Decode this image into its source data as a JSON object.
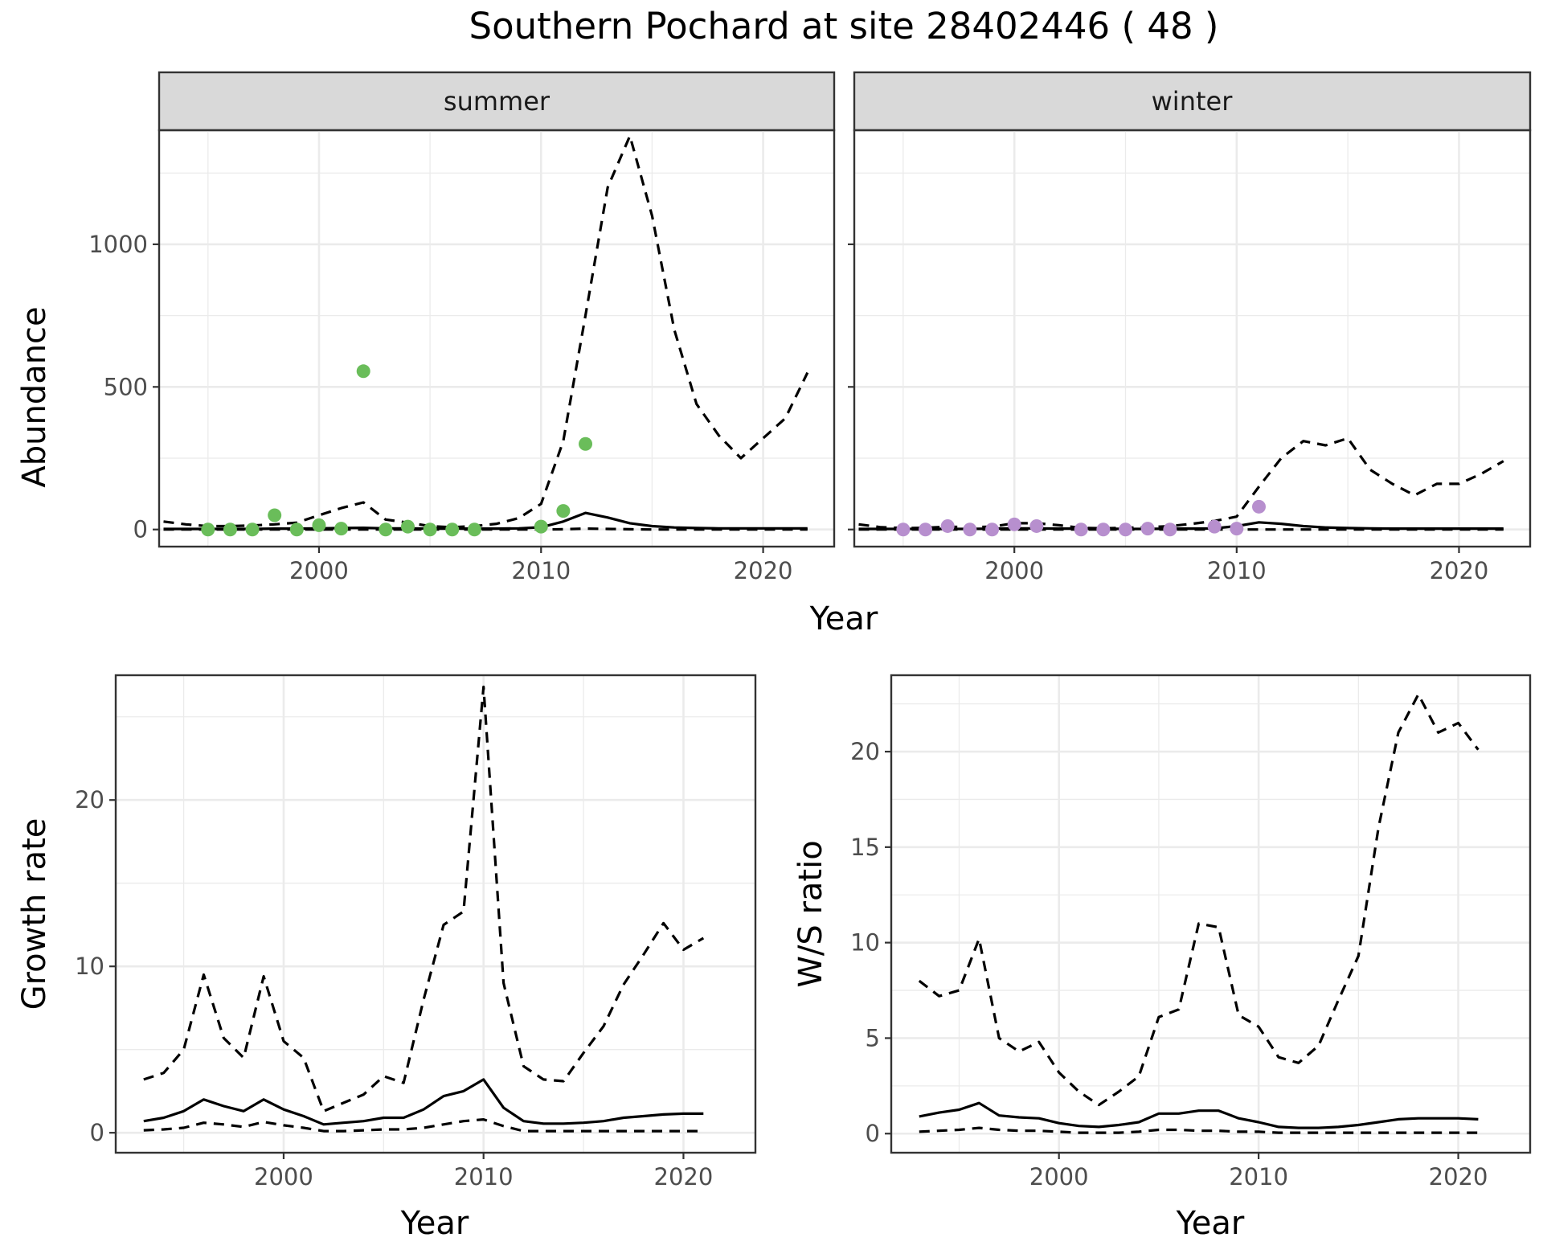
{
  "title": "Southern Pochard at site 28402446 ( 48 )",
  "colors": {
    "summer_points": "#6abd5a",
    "winter_points": "#b78fce",
    "lines": "#000000"
  },
  "chart_data": [
    {
      "type": "line",
      "facet": "summer",
      "xlabel": "Year",
      "ylabel": "Abundance",
      "xlim": [
        1992.8,
        2023.2
      ],
      "ylim": [
        -60,
        1400
      ],
      "xticks": [
        2000,
        2010,
        2020
      ],
      "yticks": [
        0,
        500,
        1000
      ],
      "grid": true,
      "x": [
        1993,
        1994,
        1995,
        1996,
        1997,
        1998,
        1999,
        2000,
        2001,
        2002,
        2003,
        2004,
        2005,
        2006,
        2007,
        2008,
        2009,
        2010,
        2011,
        2012,
        2013,
        2014,
        2015,
        2016,
        2017,
        2018,
        2019,
        2020,
        2021,
        2022
      ],
      "series": [
        {
          "style": "solid",
          "values": [
            2,
            2,
            2,
            2,
            2,
            3,
            3,
            4,
            5,
            6,
            4,
            4,
            3,
            3,
            3,
            3,
            4,
            8,
            28,
            58,
            42,
            22,
            12,
            7,
            5,
            4,
            4,
            4,
            4,
            4
          ]
        },
        {
          "style": "dashed",
          "values": [
            28,
            18,
            12,
            12,
            14,
            18,
            24,
            50,
            75,
            95,
            35,
            24,
            12,
            8,
            12,
            20,
            40,
            90,
            310,
            750,
            1200,
            1380,
            1100,
            700,
            440,
            330,
            250,
            320,
            390,
            550
          ]
        },
        {
          "style": "dashed",
          "values": [
            0,
            0,
            0,
            0,
            0,
            0,
            0,
            0,
            0,
            0,
            0,
            0,
            0,
            0,
            0,
            0,
            0,
            0,
            1,
            3,
            2,
            1,
            0,
            0,
            0,
            0,
            0,
            0,
            0,
            0
          ]
        }
      ],
      "points": {
        "x": [
          1995,
          1996,
          1997,
          1998,
          1999,
          2000,
          2001,
          2002,
          2003,
          2004,
          2005,
          2006,
          2007,
          2010,
          2011,
          2012
        ],
        "y": [
          0,
          0,
          0,
          50,
          0,
          15,
          3,
          555,
          0,
          10,
          0,
          0,
          0,
          10,
          65,
          300
        ]
      }
    },
    {
      "type": "line",
      "facet": "winter",
      "xlabel": "Year",
      "ylabel": "Abundance",
      "xlim": [
        1992.8,
        2023.2
      ],
      "ylim": [
        -60,
        1400
      ],
      "xticks": [
        2000,
        2010,
        2020
      ],
      "yticks": [
        0,
        500,
        1000
      ],
      "grid": true,
      "x": [
        1993,
        1994,
        1995,
        1996,
        1997,
        1998,
        1999,
        2000,
        2001,
        2002,
        2003,
        2004,
        2005,
        2006,
        2007,
        2008,
        2009,
        2010,
        2011,
        2012,
        2013,
        2014,
        2015,
        2016,
        2017,
        2018,
        2019,
        2020,
        2021,
        2022
      ],
      "series": [
        {
          "style": "solid",
          "values": [
            2,
            2,
            2,
            2,
            2,
            2,
            3,
            4,
            4,
            3,
            3,
            3,
            2,
            2,
            3,
            3,
            4,
            12,
            25,
            20,
            12,
            7,
            5,
            4,
            3,
            3,
            3,
            3,
            3,
            3
          ]
        },
        {
          "style": "dashed",
          "values": [
            18,
            8,
            5,
            6,
            10,
            8,
            10,
            22,
            22,
            15,
            6,
            4,
            6,
            8,
            12,
            20,
            30,
            45,
            150,
            250,
            310,
            295,
            320,
            210,
            160,
            120,
            160,
            160,
            195,
            240
          ]
        },
        {
          "style": "dashed",
          "values": [
            0,
            0,
            0,
            0,
            0,
            0,
            0,
            0,
            0,
            0,
            0,
            0,
            0,
            0,
            0,
            0,
            0,
            0,
            0,
            0,
            0,
            0,
            0,
            0,
            0,
            0,
            0,
            0,
            0,
            0
          ]
        }
      ],
      "points": {
        "x": [
          1995,
          1996,
          1997,
          1998,
          1999,
          2000,
          2001,
          2003,
          2004,
          2005,
          2006,
          2007,
          2009,
          2010,
          2011
        ],
        "y": [
          0,
          0,
          12,
          0,
          0,
          18,
          12,
          0,
          0,
          0,
          3,
          0,
          10,
          3,
          80
        ]
      }
    },
    {
      "type": "line",
      "xlabel": "Year",
      "ylabel": "Growth rate",
      "xlim": [
        1991.6,
        2023.6
      ],
      "ylim": [
        -1.2,
        27.5
      ],
      "xticks": [
        2000,
        2010,
        2020
      ],
      "yticks": [
        0,
        10,
        20
      ],
      "grid": true,
      "x": [
        1993,
        1994,
        1995,
        1996,
        1997,
        1998,
        1999,
        2000,
        2001,
        2002,
        2003,
        2004,
        2005,
        2006,
        2007,
        2008,
        2009,
        2010,
        2011,
        2012,
        2013,
        2014,
        2015,
        2016,
        2017,
        2018,
        2019,
        2020,
        2021
      ],
      "series": [
        {
          "style": "solid",
          "values": [
            0.7,
            0.9,
            1.3,
            2.0,
            1.6,
            1.3,
            2.0,
            1.4,
            1.0,
            0.5,
            0.6,
            0.7,
            0.9,
            0.9,
            1.4,
            2.2,
            2.5,
            3.2,
            1.5,
            0.7,
            0.55,
            0.55,
            0.6,
            0.7,
            0.9,
            1.0,
            1.1,
            1.15,
            1.15
          ]
        },
        {
          "style": "dashed",
          "values": [
            3.2,
            3.6,
            5.0,
            9.5,
            5.7,
            4.5,
            9.4,
            5.5,
            4.5,
            1.3,
            1.8,
            2.3,
            3.4,
            3.0,
            8.0,
            12.5,
            13.3,
            26.8,
            9.0,
            4.0,
            3.2,
            3.1,
            4.8,
            6.4,
            8.9,
            10.7,
            12.6,
            11.0,
            11.7
          ]
        },
        {
          "style": "dashed",
          "values": [
            0.15,
            0.2,
            0.3,
            0.6,
            0.5,
            0.35,
            0.65,
            0.45,
            0.3,
            0.1,
            0.1,
            0.15,
            0.2,
            0.2,
            0.3,
            0.5,
            0.7,
            0.8,
            0.4,
            0.1,
            0.1,
            0.1,
            0.1,
            0.1,
            0.1,
            0.1,
            0.1,
            0.1,
            0.1
          ]
        }
      ]
    },
    {
      "type": "line",
      "xlabel": "Year",
      "ylabel": "W/S ratio",
      "xlim": [
        1991.6,
        2023.6
      ],
      "ylim": [
        -1.0,
        24.0
      ],
      "xticks": [
        2000,
        2010,
        2020
      ],
      "yticks": [
        0,
        5,
        10,
        15,
        20
      ],
      "grid": true,
      "x": [
        1993,
        1994,
        1995,
        1996,
        1997,
        1998,
        1999,
        2000,
        2001,
        2002,
        2003,
        2004,
        2005,
        2006,
        2007,
        2008,
        2009,
        2010,
        2011,
        2012,
        2013,
        2014,
        2015,
        2016,
        2017,
        2018,
        2019,
        2020,
        2021
      ],
      "series": [
        {
          "style": "solid",
          "values": [
            0.9,
            1.1,
            1.25,
            1.6,
            0.95,
            0.85,
            0.8,
            0.55,
            0.4,
            0.35,
            0.45,
            0.6,
            1.05,
            1.05,
            1.2,
            1.2,
            0.8,
            0.6,
            0.35,
            0.3,
            0.3,
            0.35,
            0.45,
            0.6,
            0.75,
            0.8,
            0.8,
            0.8,
            0.75
          ]
        },
        {
          "style": "dashed",
          "values": [
            8.0,
            7.2,
            7.5,
            10.2,
            5.0,
            4.3,
            4.8,
            3.2,
            2.2,
            1.5,
            2.2,
            3.0,
            6.1,
            6.5,
            11.0,
            10.8,
            6.2,
            5.6,
            4.0,
            3.7,
            4.6,
            7.0,
            9.3,
            16.0,
            21.0,
            23.0,
            21.0,
            21.5,
            20.1
          ]
        },
        {
          "style": "dashed",
          "values": [
            0.1,
            0.15,
            0.2,
            0.3,
            0.2,
            0.15,
            0.15,
            0.1,
            0.05,
            0.05,
            0.05,
            0.1,
            0.2,
            0.2,
            0.15,
            0.15,
            0.1,
            0.1,
            0.05,
            0.05,
            0.05,
            0.05,
            0.05,
            0.05,
            0.05,
            0.05,
            0.05,
            0.05,
            0.05
          ]
        }
      ]
    }
  ],
  "facet_labels": [
    "summer",
    "winter"
  ],
  "shared_xlabel": "Year"
}
